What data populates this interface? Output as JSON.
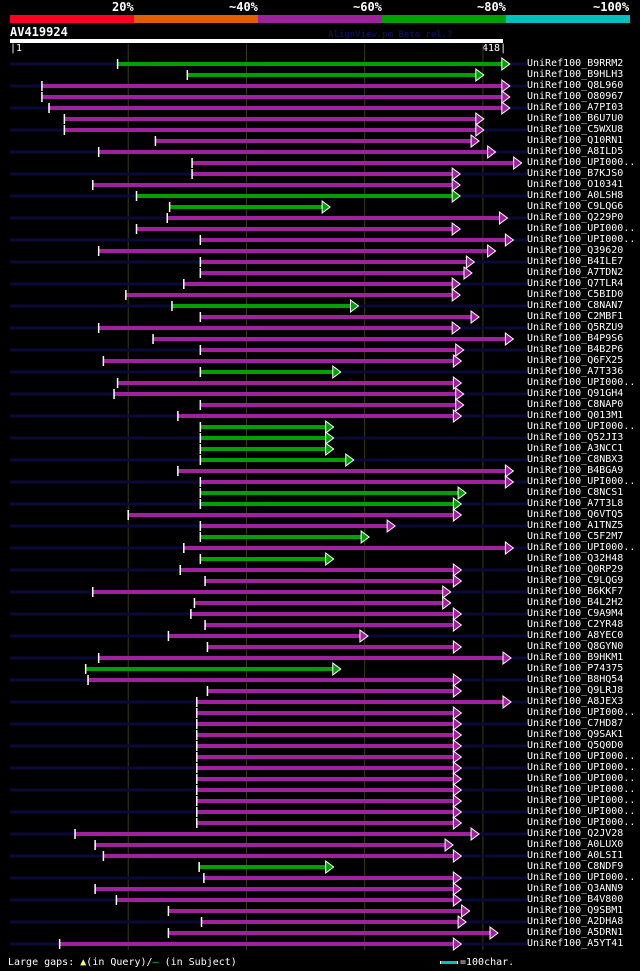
{
  "header": {
    "percent_labels": [
      "20%",
      "~40%",
      "~60%",
      "~80%",
      "~100%"
    ],
    "percent_colors": [
      "#ff0020",
      "#e06000",
      "#a020a0",
      "#00a000",
      "#00c0c0"
    ],
    "query_name": "AV419924",
    "watermark": "AlignView.pm Beta rel.7",
    "query_start": "1",
    "query_end": "418"
  },
  "query_length": 418,
  "colors": {
    "green": "#00a000",
    "purple": "#a020a0",
    "subject_line": "#0a0a3a",
    "gridline": "#3a3a10",
    "gap_marker": "#ffff80"
  },
  "hits": [
    {
      "label": "UniRef100_B9RRM2",
      "start": 92,
      "end": 417,
      "color": "green",
      "overhang": true
    },
    {
      "label": "UniRef100_B9HLH3",
      "start": 151,
      "end": 395,
      "color": "green",
      "overhang": false
    },
    {
      "label": "UniRef100_Q8L960",
      "start": 28,
      "end": 417,
      "color": "purple",
      "overhang": true
    },
    {
      "label": "UniRef100_O80967",
      "start": 28,
      "end": 417,
      "color": "purple",
      "overhang": false
    },
    {
      "label": "UniRef100_A7PI03",
      "start": 34,
      "end": 417,
      "color": "purple",
      "overhang": true
    },
    {
      "label": "UniRef100_B6U7U0",
      "start": 47,
      "end": 395,
      "color": "purple",
      "overhang": false
    },
    {
      "label": "UniRef100_C5WXU8",
      "start": 47,
      "end": 395,
      "color": "purple",
      "overhang": true
    },
    {
      "label": "UniRef100_Q10RN1",
      "start": 124,
      "end": 391,
      "color": "purple",
      "overhang": false
    },
    {
      "label": "UniRef100_A8ILD5",
      "start": 76,
      "end": 405,
      "color": "purple",
      "overhang": true
    },
    {
      "label": "UniRef100_UPI000..",
      "start": 155,
      "end": 427,
      "color": "purple",
      "overhang": false
    },
    {
      "label": "UniRef100_B7KJS0",
      "start": 155,
      "end": 375,
      "color": "purple",
      "overhang": true
    },
    {
      "label": "UniRef100_O10341",
      "start": 71,
      "end": 375,
      "color": "purple",
      "overhang": false
    },
    {
      "label": "UniRef100_A0LSH8",
      "start": 108,
      "end": 375,
      "color": "green",
      "overhang": true
    },
    {
      "label": "UniRef100_C9LQG6",
      "start": 136,
      "end": 265,
      "color": "green",
      "overhang": false
    },
    {
      "label": "UniRef100_Q229P0",
      "start": 134,
      "end": 415,
      "color": "purple",
      "overhang": true
    },
    {
      "label": "UniRef100_UPI000..",
      "start": 108,
      "end": 375,
      "color": "purple",
      "overhang": false
    },
    {
      "label": "UniRef100_UPI000..",
      "start": 162,
      "end": 420,
      "color": "purple",
      "overhang": true
    },
    {
      "label": "UniRef100_Q39620",
      "start": 76,
      "end": 405,
      "color": "purple",
      "overhang": false
    },
    {
      "label": "UniRef100_B4ILE7",
      "start": 162,
      "end": 387,
      "color": "purple",
      "overhang": true
    },
    {
      "label": "UniRef100_A7TDN2",
      "start": 162,
      "end": 385,
      "color": "purple",
      "overhang": false
    },
    {
      "label": "UniRef100_Q7TLR4",
      "start": 148,
      "end": 375,
      "color": "purple",
      "overhang": true
    },
    {
      "label": "UniRef100_C5BID0",
      "start": 99,
      "end": 375,
      "color": "purple",
      "overhang": false
    },
    {
      "label": "UniRef100_C8NAN7",
      "start": 138,
      "end": 289,
      "color": "green",
      "overhang": true
    },
    {
      "label": "UniRef100_C2MBF1",
      "start": 162,
      "end": 391,
      "color": "purple",
      "overhang": false
    },
    {
      "label": "UniRef100_Q5RZU9",
      "start": 76,
      "end": 375,
      "color": "purple",
      "overhang": true
    },
    {
      "label": "UniRef100_B4P9S6",
      "start": 122,
      "end": 420,
      "color": "purple",
      "overhang": false
    },
    {
      "label": "UniRef100_B4B2P6",
      "start": 162,
      "end": 378,
      "color": "purple",
      "overhang": true
    },
    {
      "label": "UniRef100_Q6FX25",
      "start": 80,
      "end": 376,
      "color": "purple",
      "overhang": false
    },
    {
      "label": "UniRef100_A7T336",
      "start": 162,
      "end": 274,
      "color": "green",
      "overhang": true
    },
    {
      "label": "UniRef100_UPI000..",
      "start": 92,
      "end": 376,
      "color": "purple",
      "overhang": false
    },
    {
      "label": "UniRef100_Q91GH4",
      "start": 89,
      "end": 378,
      "color": "purple",
      "overhang": true
    },
    {
      "label": "UniRef100_C8NAP0",
      "start": 162,
      "end": 378,
      "color": "purple",
      "overhang": false
    },
    {
      "label": "UniRef100_Q013M1",
      "start": 143,
      "end": 376,
      "color": "purple",
      "overhang": true
    },
    {
      "label": "UniRef100_UPI000..",
      "start": 162,
      "end": 268,
      "color": "green",
      "overhang": false
    },
    {
      "label": "UniRef100_Q52JI3",
      "start": 162,
      "end": 268,
      "color": "green",
      "overhang": true
    },
    {
      "label": "UniRef100_A3NCC1",
      "start": 162,
      "end": 268,
      "color": "green",
      "overhang": false
    },
    {
      "label": "UniRef100_C8NBX3",
      "start": 162,
      "end": 285,
      "color": "green",
      "overhang": true
    },
    {
      "label": "UniRef100_B4BGA9",
      "start": 143,
      "end": 420,
      "color": "purple",
      "overhang": false
    },
    {
      "label": "UniRef100_UPI000..",
      "start": 162,
      "end": 420,
      "color": "purple",
      "overhang": true
    },
    {
      "label": "UniRef100_C8NCS1",
      "start": 162,
      "end": 380,
      "color": "green",
      "overhang": false
    },
    {
      "label": "UniRef100_A7T3L8",
      "start": 162,
      "end": 376,
      "color": "green",
      "overhang": true
    },
    {
      "label": "UniRef100_Q6VTQ5",
      "start": 101,
      "end": 376,
      "color": "purple",
      "overhang": false
    },
    {
      "label": "UniRef100_A1TNZ5",
      "start": 162,
      "end": 320,
      "color": "purple",
      "overhang": true
    },
    {
      "label": "UniRef100_C5F2M7",
      "start": 162,
      "end": 298,
      "color": "green",
      "overhang": false
    },
    {
      "label": "UniRef100_UPI000..",
      "start": 148,
      "end": 420,
      "color": "purple",
      "overhang": true
    },
    {
      "label": "UniRef100_Q32H48",
      "start": 162,
      "end": 268,
      "color": "green",
      "overhang": false
    },
    {
      "label": "UniRef100_Q0RP29",
      "start": 145,
      "end": 376,
      "color": "purple",
      "overhang": true
    },
    {
      "label": "UniRef100_C9LQG9",
      "start": 166,
      "end": 376,
      "color": "purple",
      "overhang": false
    },
    {
      "label": "UniRef100_B6KKF7",
      "start": 71,
      "end": 367,
      "color": "purple",
      "overhang": true
    },
    {
      "label": "UniRef100_B4L2H2",
      "start": 157,
      "end": 367,
      "color": "purple",
      "overhang": false
    },
    {
      "label": "UniRef100_C9A9M4",
      "start": 154,
      "end": 376,
      "color": "purple",
      "overhang": true
    },
    {
      "label": "UniRef100_C2YR48",
      "start": 166,
      "end": 376,
      "color": "purple",
      "overhang": false
    },
    {
      "label": "UniRef100_A8YEC0",
      "start": 135,
      "end": 297,
      "color": "purple",
      "overhang": true
    },
    {
      "label": "UniRef100_Q8GYN0",
      "start": 168,
      "end": 376,
      "color": "purple",
      "overhang": false
    },
    {
      "label": "UniRef100_B9HKM1",
      "start": 76,
      "end": 418,
      "color": "purple",
      "overhang": true
    },
    {
      "label": "UniRef100_P74375",
      "start": 65,
      "end": 274,
      "color": "green",
      "overhang": false
    },
    {
      "label": "UniRef100_B8HQ54",
      "start": 67,
      "end": 376,
      "color": "purple",
      "overhang": true
    },
    {
      "label": "UniRef100_Q9LRJ8",
      "start": 168,
      "end": 376,
      "color": "purple",
      "overhang": false
    },
    {
      "label": "UniRef100_A8JEX3",
      "start": 159,
      "end": 418,
      "color": "purple",
      "overhang": true
    },
    {
      "label": "UniRef100_UPI000..",
      "start": 159,
      "end": 376,
      "color": "purple",
      "overhang": false
    },
    {
      "label": "UniRef100_C7HD87",
      "start": 159,
      "end": 376,
      "color": "purple",
      "overhang": true
    },
    {
      "label": "UniRef100_Q9SAK1",
      "start": 159,
      "end": 376,
      "color": "purple",
      "overhang": false
    },
    {
      "label": "UniRef100_Q5Q0D0",
      "start": 159,
      "end": 376,
      "color": "purple",
      "overhang": true
    },
    {
      "label": "UniRef100_UPI000..",
      "start": 159,
      "end": 376,
      "color": "purple",
      "overhang": false
    },
    {
      "label": "UniRef100_UPI000..",
      "start": 159,
      "end": 376,
      "color": "purple",
      "overhang": true
    },
    {
      "label": "UniRef100_UPI000..",
      "start": 159,
      "end": 376,
      "color": "purple",
      "overhang": false
    },
    {
      "label": "UniRef100_UPI000..",
      "start": 159,
      "end": 376,
      "color": "purple",
      "overhang": true
    },
    {
      "label": "UniRef100_UPI000..",
      "start": 159,
      "end": 376,
      "color": "purple",
      "overhang": false
    },
    {
      "label": "UniRef100_UPI000..",
      "start": 159,
      "end": 376,
      "color": "purple",
      "overhang": true
    },
    {
      "label": "UniRef100_UPI000..",
      "start": 159,
      "end": 376,
      "color": "purple",
      "overhang": false
    },
    {
      "label": "UniRef100_Q2JV28",
      "start": 56,
      "end": 391,
      "color": "purple",
      "overhang": true
    },
    {
      "label": "UniRef100_A0LUX0",
      "start": 73,
      "end": 369,
      "color": "purple",
      "overhang": false
    },
    {
      "label": "UniRef100_A0LSI1",
      "start": 80,
      "end": 376,
      "color": "purple",
      "overhang": true
    },
    {
      "label": "UniRef100_C8NDF9",
      "start": 161,
      "end": 268,
      "color": "green",
      "overhang": false
    },
    {
      "label": "UniRef100_UPI000..",
      "start": 165,
      "end": 376,
      "color": "purple",
      "overhang": true
    },
    {
      "label": "UniRef100_Q3ANN9",
      "start": 73,
      "end": 376,
      "color": "purple",
      "overhang": false
    },
    {
      "label": "UniRef100_B4V800",
      "start": 91,
      "end": 376,
      "color": "purple",
      "overhang": true
    },
    {
      "label": "UniRef100_Q9SBM1",
      "start": 135,
      "end": 383,
      "color": "purple",
      "overhang": false
    },
    {
      "label": "UniRef100_A2DHA8",
      "start": 163,
      "end": 380,
      "color": "purple",
      "overhang": true
    },
    {
      "label": "UniRef100_A5DRN1",
      "start": 135,
      "end": 407,
      "color": "purple",
      "overhang": false
    },
    {
      "label": "UniRef100_A5YT41",
      "start": 43,
      "end": 376,
      "color": "purple",
      "overhang": true
    }
  ],
  "footer": {
    "gaps_label": "Large gaps:",
    "gap_query_glyph": "▲",
    "gap_query_label": "(in Query)/",
    "gap_subject_glyph": "–",
    "gap_subject_label": " (in Subject)",
    "scale_label": "=100char."
  }
}
